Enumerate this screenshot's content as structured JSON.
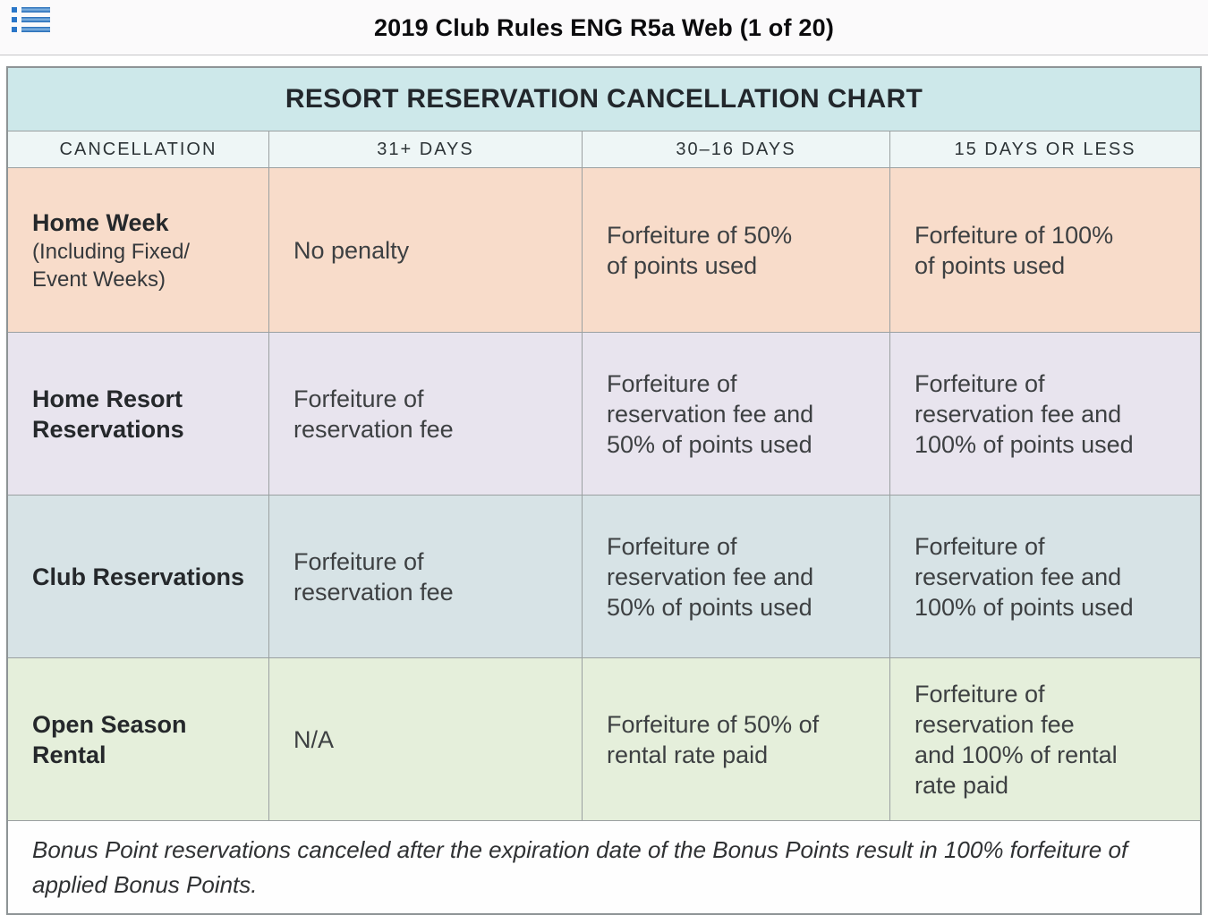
{
  "topbar": {
    "title": "2019 Club Rules ENG R5a Web (1 of 20)",
    "menu_icon": "list-icon",
    "icon_color": "#2a76c8"
  },
  "table": {
    "title": "RESORT RESERVATION CANCELLATION CHART",
    "columns": [
      "CANCELLATION",
      "31+ DAYS",
      "30–16 DAYS",
      "15 DAYS OR LESS"
    ],
    "rows": [
      {
        "label": "Home Week",
        "sublabel": "(Including Fixed/\nEvent Weeks)",
        "cells": [
          "No penalty",
          "Forfeiture of 50%\nof points used",
          "Forfeiture of 100%\nof points used"
        ],
        "bg": "row1_peach"
      },
      {
        "label": "Home Resort\nReservations",
        "sublabel": "",
        "cells": [
          "Forfeiture of\nreservation fee",
          "Forfeiture of\nreservation fee and\n50% of points used",
          "Forfeiture of\nreservation fee and\n100% of points used"
        ],
        "bg": "row2_lavender"
      },
      {
        "label": "Club Reservations",
        "sublabel": "",
        "cells": [
          "Forfeiture of\nreservation fee",
          "Forfeiture of\nreservation fee and\n50% of points used",
          "Forfeiture of\nreservation fee and\n100% of points used"
        ],
        "bg": "row3_blue"
      },
      {
        "label": "Open Season\nRental",
        "sublabel": "",
        "cells": [
          "N/A",
          "Forfeiture of 50% of\nrental rate paid",
          "Forfeiture of\nreservation fee\nand 100% of rental\nrate paid"
        ],
        "bg": "row4_green"
      }
    ],
    "note": "Bonus Point reservations canceled after the expiration date of the Bonus Points result in 100% forfeiture of\napplied Bonus Points."
  },
  "colors": {
    "title_bar": "#cde8ea",
    "header_row": "#eef6f6",
    "row1_peach": "#f8dcca",
    "row2_lavender": "#e8e4ee",
    "row3_blue": "#d7e3e6",
    "row4_green": "#e5efdb",
    "border": "#9aa0a1",
    "accent_blue": "#2a76c8"
  }
}
